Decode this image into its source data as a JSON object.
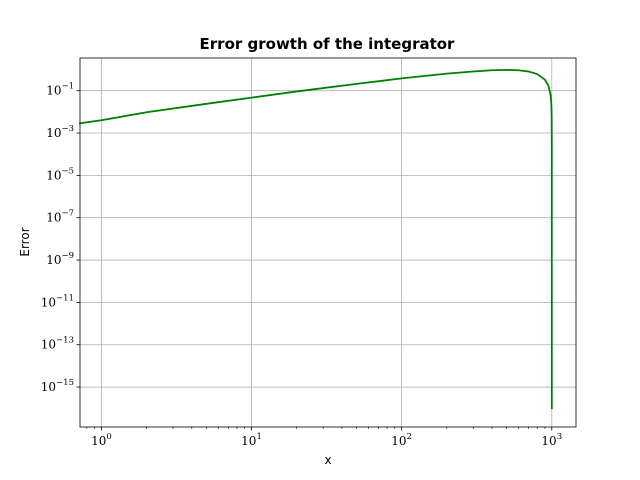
{
  "chart_data": {
    "type": "line",
    "title": "Error growth of the integrator",
    "xlabel": "x",
    "ylabel": "Error",
    "xscale": "log",
    "yscale": "log",
    "xlim": [
      0.72,
      1450
    ],
    "ylim": [
      1.3e-17,
      3.5
    ],
    "grid": true,
    "x_ticks": [
      {
        "base": "10",
        "exp": "0",
        "value": 1
      },
      {
        "base": "10",
        "exp": "1",
        "value": 10
      },
      {
        "base": "10",
        "exp": "2",
        "value": 100
      },
      {
        "base": "10",
        "exp": "3",
        "value": 1000
      }
    ],
    "y_ticks": [
      {
        "base": "10",
        "exp": "−1",
        "value": 0.1
      },
      {
        "base": "10",
        "exp": "−3",
        "value": 0.001
      },
      {
        "base": "10",
        "exp": "−5",
        "value": 1e-05
      },
      {
        "base": "10",
        "exp": "−7",
        "value": 1e-07
      },
      {
        "base": "10",
        "exp": "−9",
        "value": 1e-09
      },
      {
        "base": "10",
        "exp": "−11",
        "value": 1e-11
      },
      {
        "base": "10",
        "exp": "−13",
        "value": 1e-13
      },
      {
        "base": "10",
        "exp": "−15",
        "value": 1e-15
      }
    ],
    "series": [
      {
        "color": "#008000",
        "x": [
          0.72,
          1,
          2,
          5,
          10,
          20,
          50,
          100,
          200,
          300,
          400,
          500,
          600,
          700,
          800,
          900,
          950,
          980,
          990,
          995,
          998,
          999,
          999.5,
          999.9,
          999.99,
          1000
        ],
        "y": [
          0.0029,
          0.004,
          0.0096,
          0.024,
          0.047,
          0.092,
          0.21,
          0.38,
          0.64,
          0.81,
          0.92,
          0.96,
          0.92,
          0.81,
          0.61,
          0.33,
          0.17,
          0.068,
          0.034,
          0.0171,
          0.0069,
          0.00345,
          0.00173,
          0.00035,
          3.5e-05,
          1e-16
        ]
      }
    ]
  }
}
